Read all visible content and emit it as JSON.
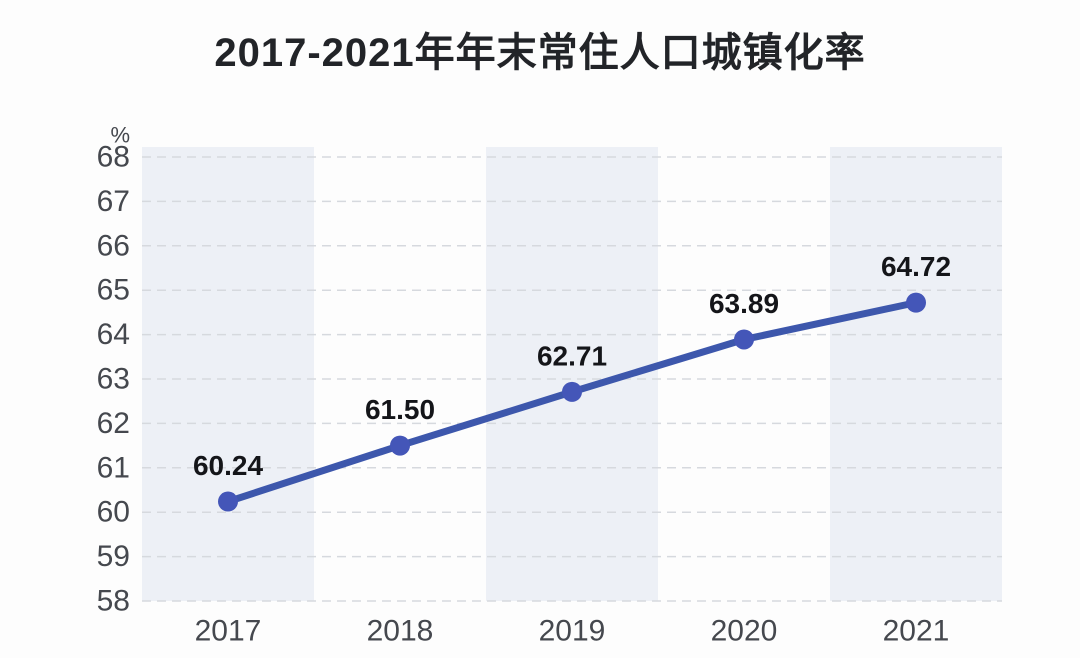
{
  "chart_data": {
    "type": "line",
    "title": "2017-2021年年末常住人口城镇化率",
    "unit": "%",
    "categories": [
      "2017",
      "2018",
      "2019",
      "2020",
      "2021"
    ],
    "series": [
      {
        "name": "年末常住人口城镇化率",
        "values": [
          60.24,
          61.5,
          62.71,
          63.89,
          64.72
        ],
        "value_labels": [
          "60.24",
          "61.50",
          "62.71",
          "63.89",
          "64.72"
        ]
      }
    ],
    "ylabel": "%",
    "xlabel": "",
    "ylim": [
      58,
      68
    ],
    "yticks": [
      58,
      59,
      60,
      61,
      62,
      63,
      64,
      65,
      66,
      67,
      68
    ],
    "grid": "horizontal-dashed",
    "legend": "none",
    "plot_bands": "alternating vertical bands behind odd categories",
    "colors": {
      "line": "#3d57ac",
      "marker": "#4456b8",
      "band": "#edf0f6",
      "grid": "#d6d9de",
      "title_text": "#222428",
      "axis_text": "#45484e",
      "value_text": "#141519",
      "background": "#fdfdfd"
    }
  }
}
